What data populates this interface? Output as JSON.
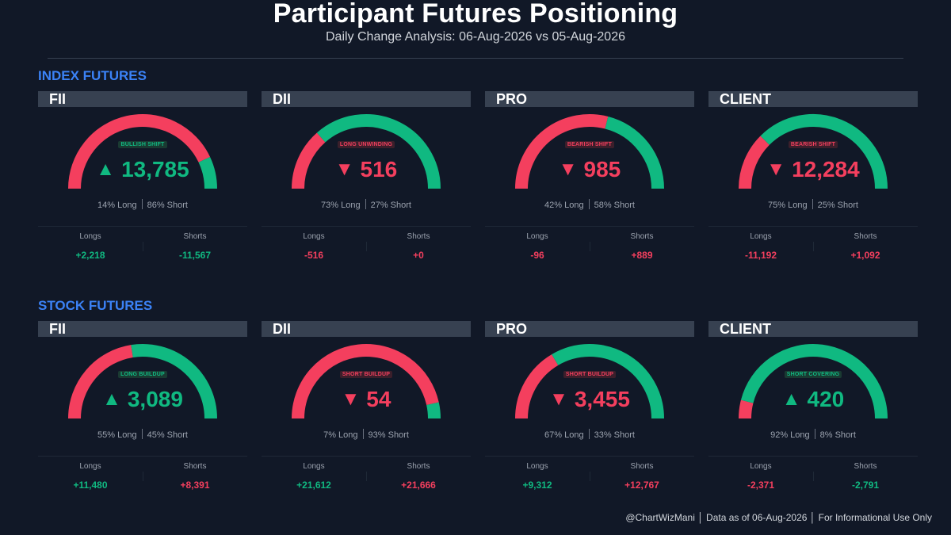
{
  "header": {
    "title": "Participant Futures Positioning",
    "subtitle": "Daily Change Analysis: 06-Aug-2026 vs 05-Aug-2026"
  },
  "colors": {
    "long": "#10b981",
    "short": "#f43f5e",
    "section": "#3b82f6",
    "panel_header": "#374151"
  },
  "sections": [
    {
      "title": "INDEX FUTURES",
      "panels": [
        {
          "name": "FII",
          "badge": "BULLISH SHIFT",
          "direction": "up",
          "arrow": "▲",
          "net": "13,785",
          "long_pct": 14,
          "long_text": "14% Long",
          "short_text": "86% Short",
          "longs_label": "Longs",
          "shorts_label": "Shorts",
          "longs": "+2,218",
          "shorts": "-11,567",
          "longs_sign": "pos",
          "shorts_sign": "pos"
        },
        {
          "name": "DII",
          "badge": "LONG UNWINDING",
          "direction": "down",
          "arrow": "▼",
          "net": "516",
          "long_pct": 73,
          "long_text": "73% Long",
          "short_text": "27% Short",
          "longs_label": "Longs",
          "shorts_label": "Shorts",
          "longs": "-516",
          "shorts": "+0",
          "longs_sign": "neg",
          "shorts_sign": "neg"
        },
        {
          "name": "PRO",
          "badge": "BEARISH SHIFT",
          "direction": "down",
          "arrow": "▼",
          "net": "985",
          "long_pct": 42,
          "long_text": "42% Long",
          "short_text": "58% Short",
          "longs_label": "Longs",
          "shorts_label": "Shorts",
          "longs": "-96",
          "shorts": "+889",
          "longs_sign": "neg",
          "shorts_sign": "neg"
        },
        {
          "name": "CLIENT",
          "badge": "BEARISH SHIFT",
          "direction": "down",
          "arrow": "▼",
          "net": "12,284",
          "long_pct": 75,
          "long_text": "75% Long",
          "short_text": "25% Short",
          "longs_label": "Longs",
          "shorts_label": "Shorts",
          "longs": "-11,192",
          "shorts": "+1,092",
          "longs_sign": "neg",
          "shorts_sign": "neg"
        }
      ]
    },
    {
      "title": "STOCK FUTURES",
      "panels": [
        {
          "name": "FII",
          "badge": "LONG BUILDUP",
          "direction": "up",
          "arrow": "▲",
          "net": "3,089",
          "long_pct": 55,
          "long_text": "55% Long",
          "short_text": "45% Short",
          "longs_label": "Longs",
          "shorts_label": "Shorts",
          "longs": "+11,480",
          "shorts": "+8,391",
          "longs_sign": "pos",
          "shorts_sign": "neg"
        },
        {
          "name": "DII",
          "badge": "SHORT BUILDUP",
          "direction": "down",
          "arrow": "▼",
          "net": "54",
          "long_pct": 7,
          "long_text": "7% Long",
          "short_text": "93% Short",
          "longs_label": "Longs",
          "shorts_label": "Shorts",
          "longs": "+21,612",
          "shorts": "+21,666",
          "longs_sign": "pos",
          "shorts_sign": "neg"
        },
        {
          "name": "PRO",
          "badge": "SHORT BUILDUP",
          "direction": "down",
          "arrow": "▼",
          "net": "3,455",
          "long_pct": 67,
          "long_text": "67% Long",
          "short_text": "33% Short",
          "longs_label": "Longs",
          "shorts_label": "Shorts",
          "longs": "+9,312",
          "shorts": "+12,767",
          "longs_sign": "pos",
          "shorts_sign": "neg"
        },
        {
          "name": "CLIENT",
          "badge": "SHORT COVERING",
          "direction": "up",
          "arrow": "▲",
          "net": "420",
          "long_pct": 92,
          "long_text": "92% Long",
          "short_text": "8% Short",
          "longs_label": "Longs",
          "shorts_label": "Shorts",
          "longs": "-2,371",
          "shorts": "-2,791",
          "longs_sign": "neg",
          "shorts_sign": "pos"
        }
      ]
    }
  ],
  "chart_data": {
    "type": "gauge",
    "title": "Participant Futures Positioning",
    "subtitle": "Daily Change Analysis: 06-Aug-2026 vs 05-Aug-2026",
    "segments": [
      "Short (red, from left)",
      "Long (green, to right)"
    ],
    "groups": [
      {
        "section": "INDEX FUTURES",
        "participants": [
          "FII",
          "DII",
          "PRO",
          "CLIENT"
        ],
        "long_pct": [
          14,
          73,
          42,
          75
        ],
        "short_pct": [
          86,
          27,
          58,
          25
        ],
        "net_change": [
          13785,
          -516,
          -985,
          -12284
        ],
        "longs_change": [
          2218,
          -516,
          -96,
          -11192
        ],
        "shorts_change": [
          -11567,
          0,
          889,
          1092
        ]
      },
      {
        "section": "STOCK FUTURES",
        "participants": [
          "FII",
          "DII",
          "PRO",
          "CLIENT"
        ],
        "long_pct": [
          55,
          7,
          67,
          92
        ],
        "short_pct": [
          45,
          93,
          33,
          8
        ],
        "net_change": [
          3089,
          -54,
          -3455,
          420
        ],
        "longs_change": [
          11480,
          21612,
          9312,
          -2371
        ],
        "shorts_change": [
          8391,
          21666,
          12767,
          -2791
        ]
      }
    ]
  },
  "footer": {
    "text": "@ChartWizMani │ Data as of 06-Aug-2026 │ For Informational Use Only"
  }
}
